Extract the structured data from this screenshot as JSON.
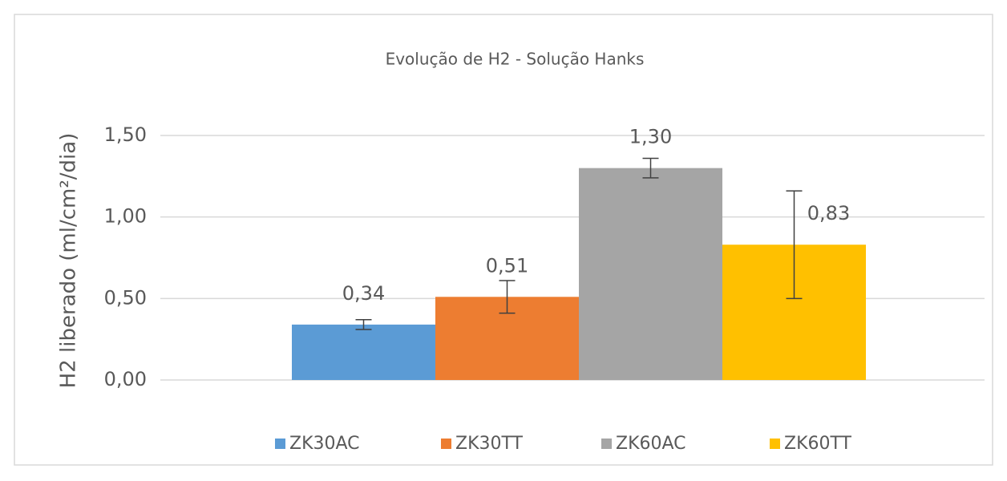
{
  "chart_data": {
    "type": "bar",
    "title": "Evolução de H2  -  Solução Hanks",
    "y_label": "H2 liberado (ml/cm²/dia)",
    "series": [
      {
        "name": "ZK30AC",
        "color": "#5b9bd5",
        "values": [
          0.34
        ],
        "errors": [
          0.03
        ],
        "value_labels": [
          "0,34"
        ]
      },
      {
        "name": "ZK30TT",
        "color": "#ed7d31",
        "values": [
          0.51
        ],
        "errors": [
          0.1
        ],
        "value_labels": [
          "0,51"
        ]
      },
      {
        "name": "ZK60AC",
        "color": "#a5a5a5",
        "values": [
          1.3
        ],
        "errors": [
          0.06
        ],
        "value_labels": [
          "1,30"
        ]
      },
      {
        "name": "ZK60TT",
        "color": "#ffc000",
        "values": [
          0.83
        ],
        "errors": [
          0.33
        ],
        "value_labels": [
          "0,83"
        ]
      }
    ],
    "ylim": [
      0,
      1.5
    ],
    "yticks": [
      {
        "value": 0,
        "label": "0,00"
      },
      {
        "value": 0.5,
        "label": "0,50"
      },
      {
        "value": 1,
        "label": "1,00"
      },
      {
        "value": 1.5,
        "label": "1,50"
      }
    ],
    "grid": true,
    "legend": "bottom"
  }
}
